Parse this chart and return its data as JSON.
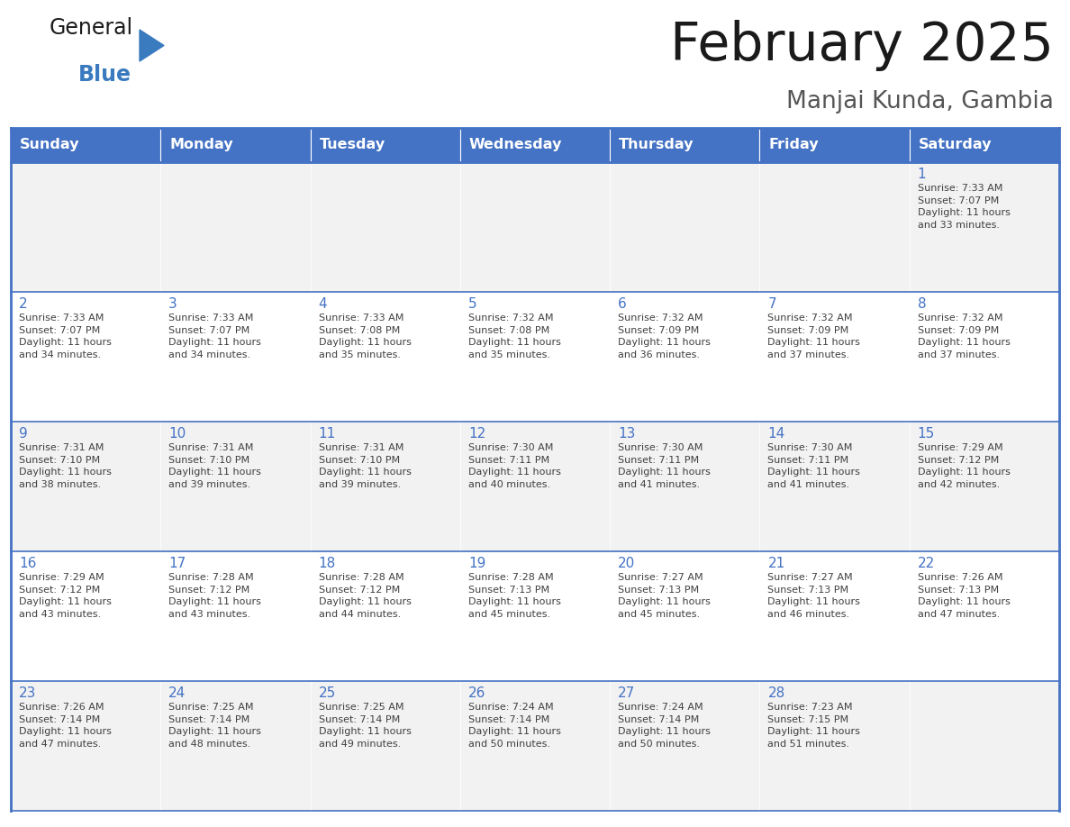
{
  "title": "February 2025",
  "subtitle": "Manjai Kunda, Gambia",
  "header_bg": "#4472C4",
  "header_text_color": "#FFFFFF",
  "days_of_week": [
    "Sunday",
    "Monday",
    "Tuesday",
    "Wednesday",
    "Thursday",
    "Friday",
    "Saturday"
  ],
  "cell_bg_light": "#F2F2F2",
  "cell_bg_white": "#FFFFFF",
  "cell_border_color": "#4472C4",
  "cell_inner_border": "#cccccc",
  "day_number_color": "#4472C4",
  "info_text_color": "#404040",
  "calendar": [
    [
      {
        "day": null,
        "info": ""
      },
      {
        "day": null,
        "info": ""
      },
      {
        "day": null,
        "info": ""
      },
      {
        "day": null,
        "info": ""
      },
      {
        "day": null,
        "info": ""
      },
      {
        "day": null,
        "info": ""
      },
      {
        "day": 1,
        "info": "Sunrise: 7:33 AM\nSunset: 7:07 PM\nDaylight: 11 hours\nand 33 minutes."
      }
    ],
    [
      {
        "day": 2,
        "info": "Sunrise: 7:33 AM\nSunset: 7:07 PM\nDaylight: 11 hours\nand 34 minutes."
      },
      {
        "day": 3,
        "info": "Sunrise: 7:33 AM\nSunset: 7:07 PM\nDaylight: 11 hours\nand 34 minutes."
      },
      {
        "day": 4,
        "info": "Sunrise: 7:33 AM\nSunset: 7:08 PM\nDaylight: 11 hours\nand 35 minutes."
      },
      {
        "day": 5,
        "info": "Sunrise: 7:32 AM\nSunset: 7:08 PM\nDaylight: 11 hours\nand 35 minutes."
      },
      {
        "day": 6,
        "info": "Sunrise: 7:32 AM\nSunset: 7:09 PM\nDaylight: 11 hours\nand 36 minutes."
      },
      {
        "day": 7,
        "info": "Sunrise: 7:32 AM\nSunset: 7:09 PM\nDaylight: 11 hours\nand 37 minutes."
      },
      {
        "day": 8,
        "info": "Sunrise: 7:32 AM\nSunset: 7:09 PM\nDaylight: 11 hours\nand 37 minutes."
      }
    ],
    [
      {
        "day": 9,
        "info": "Sunrise: 7:31 AM\nSunset: 7:10 PM\nDaylight: 11 hours\nand 38 minutes."
      },
      {
        "day": 10,
        "info": "Sunrise: 7:31 AM\nSunset: 7:10 PM\nDaylight: 11 hours\nand 39 minutes."
      },
      {
        "day": 11,
        "info": "Sunrise: 7:31 AM\nSunset: 7:10 PM\nDaylight: 11 hours\nand 39 minutes."
      },
      {
        "day": 12,
        "info": "Sunrise: 7:30 AM\nSunset: 7:11 PM\nDaylight: 11 hours\nand 40 minutes."
      },
      {
        "day": 13,
        "info": "Sunrise: 7:30 AM\nSunset: 7:11 PM\nDaylight: 11 hours\nand 41 minutes."
      },
      {
        "day": 14,
        "info": "Sunrise: 7:30 AM\nSunset: 7:11 PM\nDaylight: 11 hours\nand 41 minutes."
      },
      {
        "day": 15,
        "info": "Sunrise: 7:29 AM\nSunset: 7:12 PM\nDaylight: 11 hours\nand 42 minutes."
      }
    ],
    [
      {
        "day": 16,
        "info": "Sunrise: 7:29 AM\nSunset: 7:12 PM\nDaylight: 11 hours\nand 43 minutes."
      },
      {
        "day": 17,
        "info": "Sunrise: 7:28 AM\nSunset: 7:12 PM\nDaylight: 11 hours\nand 43 minutes."
      },
      {
        "day": 18,
        "info": "Sunrise: 7:28 AM\nSunset: 7:12 PM\nDaylight: 11 hours\nand 44 minutes."
      },
      {
        "day": 19,
        "info": "Sunrise: 7:28 AM\nSunset: 7:13 PM\nDaylight: 11 hours\nand 45 minutes."
      },
      {
        "day": 20,
        "info": "Sunrise: 7:27 AM\nSunset: 7:13 PM\nDaylight: 11 hours\nand 45 minutes."
      },
      {
        "day": 21,
        "info": "Sunrise: 7:27 AM\nSunset: 7:13 PM\nDaylight: 11 hours\nand 46 minutes."
      },
      {
        "day": 22,
        "info": "Sunrise: 7:26 AM\nSunset: 7:13 PM\nDaylight: 11 hours\nand 47 minutes."
      }
    ],
    [
      {
        "day": 23,
        "info": "Sunrise: 7:26 AM\nSunset: 7:14 PM\nDaylight: 11 hours\nand 47 minutes."
      },
      {
        "day": 24,
        "info": "Sunrise: 7:25 AM\nSunset: 7:14 PM\nDaylight: 11 hours\nand 48 minutes."
      },
      {
        "day": 25,
        "info": "Sunrise: 7:25 AM\nSunset: 7:14 PM\nDaylight: 11 hours\nand 49 minutes."
      },
      {
        "day": 26,
        "info": "Sunrise: 7:24 AM\nSunset: 7:14 PM\nDaylight: 11 hours\nand 50 minutes."
      },
      {
        "day": 27,
        "info": "Sunrise: 7:24 AM\nSunset: 7:14 PM\nDaylight: 11 hours\nand 50 minutes."
      },
      {
        "day": 28,
        "info": "Sunrise: 7:23 AM\nSunset: 7:15 PM\nDaylight: 11 hours\nand 51 minutes."
      },
      {
        "day": null,
        "info": ""
      }
    ]
  ],
  "logo_color_general": "#1a1a1a",
  "logo_color_blue": "#3a7abf",
  "logo_triangle_color": "#3a7abf",
  "fig_width": 11.88,
  "fig_height": 9.18,
  "dpi": 100
}
